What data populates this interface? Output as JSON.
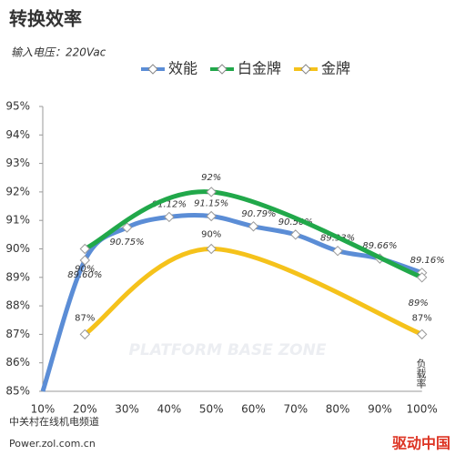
{
  "chart_data": {
    "type": "line",
    "title": "转换效率",
    "subtitle": "输入电压：220Vac",
    "x_label": "负载率",
    "watermark": "PLATFORM BASE ZONE",
    "footer": [
      "中关村在线机电频道",
      "Power.zol.com.cn"
    ],
    "logo": "驱动中国",
    "categories": [
      "10%",
      "20%",
      "30%",
      "40%",
      "50%",
      "60%",
      "70%",
      "80%",
      "90%",
      "100%"
    ],
    "ylim": [
      85,
      95
    ],
    "yticks": [
      {
        "value": 85,
        "label": "85%"
      },
      {
        "value": 86,
        "label": "86%"
      },
      {
        "value": 87,
        "label": "87%"
      },
      {
        "value": 88,
        "label": "88%"
      },
      {
        "value": 89,
        "label": "89%"
      },
      {
        "value": 90,
        "label": "90%"
      },
      {
        "value": 91,
        "label": "91%"
      },
      {
        "value": 92,
        "label": "92%"
      },
      {
        "value": 93,
        "label": "93%"
      },
      {
        "value": 94,
        "label": "94%"
      },
      {
        "value": 95,
        "label": "95%"
      }
    ],
    "series": [
      {
        "name": "效能",
        "color": "#5b8dd6",
        "x": [
          "10%",
          "20%",
          "30%",
          "40%",
          "50%",
          "60%",
          "70%",
          "80%",
          "90%",
          "100%"
        ],
        "values": [
          85,
          89.6,
          90.75,
          91.12,
          91.15,
          90.79,
          90.5,
          89.93,
          89.66,
          89.16
        ],
        "value_labels": [
          null,
          "89.60%",
          "90.75%",
          "91.12%",
          "91.15%",
          "90.79%",
          "90.50%",
          "89.93%",
          "89.66%",
          "89.16%"
        ]
      },
      {
        "name": "白金牌",
        "color": "#21a84a",
        "x": [
          "20%",
          "50%",
          "100%"
        ],
        "values": [
          90,
          92,
          89
        ],
        "value_labels": [
          "90%",
          "92%",
          "89%"
        ]
      },
      {
        "name": "金牌",
        "color": "#f5c21b",
        "x": [
          "20%",
          "50%",
          "100%"
        ],
        "values": [
          87,
          90,
          87
        ],
        "value_labels": [
          "87%",
          "90%",
          "87%"
        ]
      }
    ]
  }
}
